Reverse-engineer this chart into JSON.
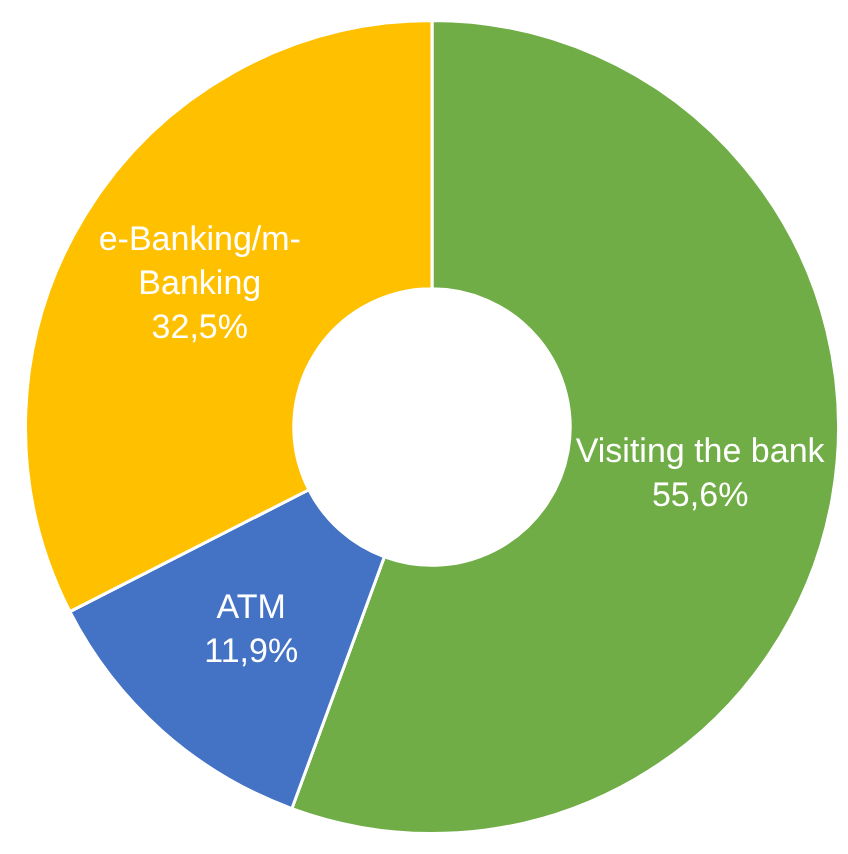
{
  "chart_data": {
    "type": "donut",
    "categories": [
      "Visiting the bank",
      "ATM",
      "e-Banking/m-Banking"
    ],
    "values": [
      55.6,
      11.9,
      32.5
    ],
    "colors": [
      "#70ad47",
      "#4472c4",
      "#ffc000"
    ],
    "value_labels": [
      "55,6%",
      "11,9%",
      "32,5%"
    ],
    "legend": false
  }
}
